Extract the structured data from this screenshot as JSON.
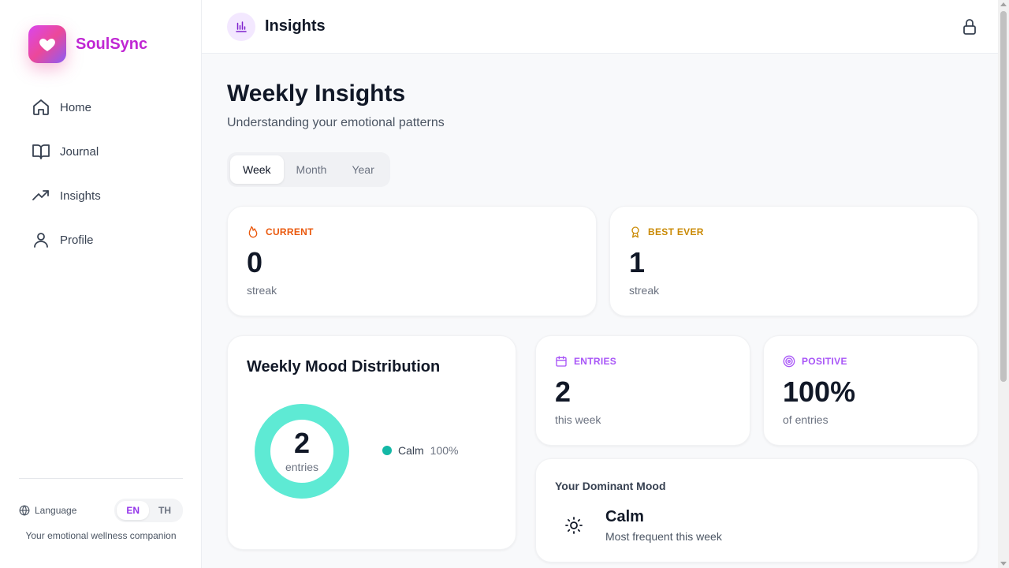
{
  "app": {
    "name": "SoulSync",
    "tagline": "Your emotional wellness companion"
  },
  "sidebar": {
    "items": [
      {
        "label": "Home",
        "icon": "home-icon"
      },
      {
        "label": "Journal",
        "icon": "book-open-icon"
      },
      {
        "label": "Insights",
        "icon": "trending-up-icon"
      },
      {
        "label": "Profile",
        "icon": "user-icon"
      }
    ],
    "language": {
      "label": "Language",
      "options": [
        "EN",
        "TH"
      ],
      "selected": "EN"
    }
  },
  "header": {
    "title": "Insights",
    "icon": "bar-chart-icon"
  },
  "main": {
    "title": "Weekly Insights",
    "subtitle": "Understanding your emotional patterns",
    "period_tabs": [
      "Week",
      "Month",
      "Year"
    ],
    "selected_period": "Week",
    "streak_current": {
      "label": "CURRENT",
      "value": "0",
      "unit": "streak"
    },
    "streak_best": {
      "label": "BEST EVER",
      "value": "1",
      "unit": "streak"
    },
    "entries": {
      "label": "ENTRIES",
      "value": "2",
      "unit": "this week"
    },
    "positive": {
      "label": "POSITIVE",
      "value": "100%",
      "unit": "of entries"
    },
    "mood_distribution": {
      "title": "Weekly Mood Distribution",
      "total": "2",
      "total_label": "entries"
    },
    "dominant_mood": {
      "title": "Your Dominant Mood",
      "mood": "Calm",
      "description": "Most frequent this week"
    }
  },
  "chart_data": {
    "type": "pie",
    "categories": [
      "Calm"
    ],
    "values": [
      100
    ],
    "value_labels": [
      "100%"
    ],
    "title": "Weekly Mood Distribution",
    "colors": [
      "#5eead4"
    ]
  },
  "colors": {
    "brand": "#c026d3",
    "accent_purple": "#9333ea",
    "current_orange": "#ea580c",
    "best_yellow": "#ca8a04",
    "entries_purple": "#a855f7",
    "calm_teal": "#5eead4",
    "calm_dot": "#14b8a6"
  }
}
